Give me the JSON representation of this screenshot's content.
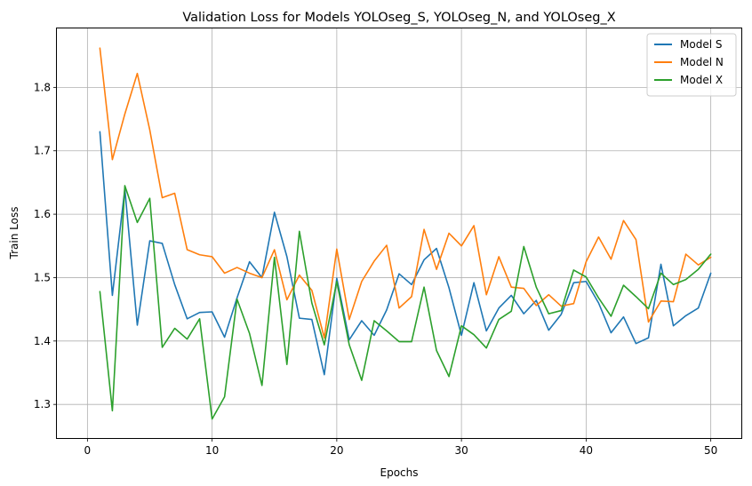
{
  "chart_data": {
    "type": "line",
    "title": "Validation Loss for Models YOLOseg_S, YOLOseg_N, and YOLOseg_X",
    "xlabel": "Epochs",
    "ylabel": "Train Loss",
    "xlim": [
      -2.45,
      52.45
    ],
    "ylim": [
      1.247,
      1.893
    ],
    "xticks": [
      0,
      10,
      20,
      30,
      40,
      50
    ],
    "yticks": [
      1.3,
      1.4,
      1.5,
      1.6,
      1.7,
      1.8
    ],
    "grid": true,
    "legend_position": "top-right",
    "x": [
      1,
      2,
      3,
      4,
      5,
      6,
      7,
      8,
      9,
      10,
      11,
      12,
      13,
      14,
      15,
      16,
      17,
      18,
      19,
      20,
      21,
      22,
      23,
      24,
      25,
      26,
      27,
      28,
      29,
      30,
      31,
      32,
      33,
      34,
      35,
      36,
      37,
      38,
      39,
      40,
      41,
      42,
      43,
      44,
      45,
      46,
      47,
      48,
      49,
      50
    ],
    "series": [
      {
        "name": "Model S",
        "color": "#1f77b4",
        "values": [
          1.73,
          1.472,
          1.64,
          1.425,
          1.558,
          1.554,
          1.489,
          1.435,
          1.445,
          1.446,
          1.406,
          1.468,
          1.525,
          1.5,
          1.603,
          1.533,
          1.436,
          1.434,
          1.347,
          1.499,
          1.402,
          1.432,
          1.409,
          1.449,
          1.506,
          1.489,
          1.528,
          1.546,
          1.484,
          1.409,
          1.492,
          1.416,
          1.452,
          1.472,
          1.443,
          1.464,
          1.417,
          1.442,
          1.492,
          1.494,
          1.46,
          1.413,
          1.438,
          1.396,
          1.405,
          1.521,
          1.424,
          1.44,
          1.452,
          1.507
        ]
      },
      {
        "name": "Model N",
        "color": "#ff7f0e",
        "values": [
          1.862,
          1.686,
          1.758,
          1.822,
          1.733,
          1.626,
          1.633,
          1.544,
          1.536,
          1.533,
          1.507,
          1.516,
          1.507,
          1.5,
          1.544,
          1.465,
          1.504,
          1.48,
          1.405,
          1.545,
          1.434,
          1.494,
          1.526,
          1.551,
          1.452,
          1.47,
          1.576,
          1.513,
          1.57,
          1.55,
          1.582,
          1.473,
          1.533,
          1.485,
          1.483,
          1.456,
          1.473,
          1.455,
          1.459,
          1.525,
          1.564,
          1.529,
          1.59,
          1.56,
          1.43,
          1.463,
          1.462,
          1.537,
          1.52,
          1.532
        ]
      },
      {
        "name": "Model X",
        "color": "#2ca02c",
        "values": [
          1.478,
          1.29,
          1.645,
          1.587,
          1.625,
          1.39,
          1.42,
          1.403,
          1.435,
          1.277,
          1.312,
          1.466,
          1.412,
          1.33,
          1.532,
          1.363,
          1.573,
          1.46,
          1.394,
          1.494,
          1.394,
          1.338,
          1.432,
          1.416,
          1.399,
          1.399,
          1.485,
          1.385,
          1.344,
          1.424,
          1.41,
          1.389,
          1.434,
          1.447,
          1.549,
          1.485,
          1.443,
          1.448,
          1.512,
          1.501,
          1.468,
          1.439,
          1.488,
          1.47,
          1.451,
          1.507,
          1.489,
          1.497,
          1.513,
          1.537
        ]
      }
    ]
  }
}
